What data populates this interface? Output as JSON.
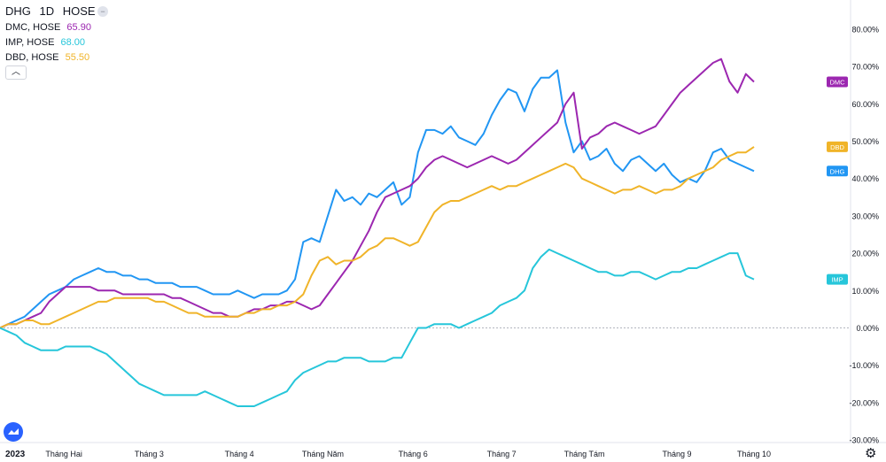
{
  "header": {
    "symbol": "DHG",
    "interval": "1D",
    "exchange": "HOSE",
    "collapse_icon": "minus-icon"
  },
  "legend": [
    {
      "label": "DMC, HOSE",
      "value": "65.90",
      "color": "#9c27b0"
    },
    {
      "label": "IMP, HOSE",
      "value": "68.00",
      "color": "#26c6da"
    },
    {
      "label": "DBD, HOSE",
      "value": "55.50",
      "color": "#f0b429"
    }
  ],
  "footer": {
    "year_label": "2023",
    "logo_icon": "tradingview-logo-icon",
    "settings_icon": "gear-icon",
    "chevron_icon": "chevron-up-icon"
  },
  "chart_data": {
    "type": "line",
    "x_range": [
      0,
      100
    ],
    "ylim": [
      -30,
      85
    ],
    "y_ticks": [
      80,
      70,
      60,
      50,
      40,
      30,
      20,
      10,
      0,
      -10,
      -20,
      -30
    ],
    "y_tick_labels": [
      "80.00%",
      "70.00%",
      "60.00%",
      "50.00%",
      "40.00%",
      "30.00%",
      "20.00%",
      "10.00%",
      "0.00%",
      "-10.00%",
      "-20.00%",
      "-30.00%"
    ],
    "x_ticks": [
      {
        "label": "Tháng Hai",
        "x": 7.8
      },
      {
        "label": "Tháng 3",
        "x": 18.2
      },
      {
        "label": "Tháng 4",
        "x": 29.2
      },
      {
        "label": "Tháng Năm",
        "x": 39.4
      },
      {
        "label": "Tháng 6",
        "x": 50.4
      },
      {
        "label": "Tháng 7",
        "x": 61.2
      },
      {
        "label": "Tháng Tám",
        "x": 71.3
      },
      {
        "label": "Tháng 9",
        "x": 82.6
      },
      {
        "label": "Tháng 10",
        "x": 92.0
      }
    ],
    "baseline": 0,
    "series": [
      {
        "name": "DHG",
        "color": "#2196f3",
        "x": [
          0,
          1,
          2,
          3,
          4,
          5,
          6,
          7,
          8,
          9,
          10,
          11,
          12,
          13,
          14,
          15,
          16,
          17,
          18,
          19,
          20,
          21,
          22,
          23,
          24,
          25,
          26,
          27,
          28,
          29,
          30,
          31,
          32,
          33,
          34,
          35,
          36,
          37,
          38,
          39,
          40,
          41,
          42,
          43,
          44,
          45,
          46,
          47,
          48,
          49,
          50,
          51,
          52,
          53,
          54,
          55,
          56,
          57,
          58,
          59,
          60,
          61,
          62,
          63,
          64,
          65,
          66,
          67,
          68,
          69,
          70,
          71,
          72,
          73,
          74,
          75,
          76,
          77,
          78,
          79,
          80,
          81,
          82,
          83,
          84,
          85,
          86,
          87,
          88,
          89,
          90,
          91,
          92
        ],
        "y": [
          0,
          1,
          2,
          3,
          5,
          7,
          9,
          10,
          11,
          13,
          14,
          15,
          16,
          15,
          15,
          14,
          14,
          13,
          13,
          12,
          12,
          12,
          11,
          11,
          11,
          10,
          9,
          9,
          9,
          10,
          9,
          8,
          9,
          9,
          9,
          10,
          13,
          23,
          24,
          23,
          30,
          37,
          34,
          35,
          33,
          36,
          35,
          37,
          39,
          33,
          35,
          47,
          53,
          53,
          52,
          54,
          51,
          50,
          49,
          52,
          57,
          61,
          64,
          63,
          58,
          64,
          67,
          67,
          69,
          55,
          47,
          50,
          45,
          46,
          48,
          44,
          42,
          45,
          46,
          44,
          42,
          44,
          41,
          39,
          40,
          39,
          42,
          47,
          48,
          45,
          44,
          43,
          42
        ]
      },
      {
        "name": "DMC",
        "color": "#9c27b0",
        "x": [
          0,
          1,
          2,
          3,
          4,
          5,
          6,
          7,
          8,
          9,
          10,
          11,
          12,
          13,
          14,
          15,
          16,
          17,
          18,
          19,
          20,
          21,
          22,
          23,
          24,
          25,
          26,
          27,
          28,
          29,
          30,
          31,
          32,
          33,
          34,
          35,
          36,
          37,
          38,
          39,
          40,
          41,
          42,
          43,
          44,
          45,
          46,
          47,
          48,
          49,
          50,
          51,
          52,
          53,
          54,
          55,
          56,
          57,
          58,
          59,
          60,
          61,
          62,
          63,
          64,
          65,
          66,
          67,
          68,
          69,
          70,
          71,
          72,
          73,
          74,
          75,
          76,
          77,
          78,
          79,
          80,
          81,
          82,
          83,
          84,
          85,
          86,
          87,
          88,
          89,
          90,
          91,
          92
        ],
        "y": [
          0,
          1,
          1,
          2,
          3,
          4,
          7,
          9,
          11,
          11,
          11,
          11,
          10,
          10,
          10,
          9,
          9,
          9,
          9,
          9,
          9,
          8,
          8,
          7,
          6,
          5,
          4,
          4,
          3,
          3,
          4,
          5,
          5,
          6,
          6,
          7,
          7,
          6,
          5,
          6,
          9,
          12,
          15,
          18,
          22,
          26,
          31,
          35,
          36,
          37,
          38,
          40,
          43,
          45,
          46,
          45,
          44,
          43,
          44,
          45,
          46,
          45,
          44,
          45,
          47,
          49,
          51,
          53,
          55,
          60,
          63,
          48,
          51,
          52,
          54,
          55,
          54,
          53,
          52,
          53,
          54,
          57,
          60,
          63,
          65,
          67,
          69,
          71,
          72,
          66,
          63,
          68,
          65.9
        ]
      },
      {
        "name": "DBD",
        "color": "#f0b429",
        "x": [
          0,
          1,
          2,
          3,
          4,
          5,
          6,
          7,
          8,
          9,
          10,
          11,
          12,
          13,
          14,
          15,
          16,
          17,
          18,
          19,
          20,
          21,
          22,
          23,
          24,
          25,
          26,
          27,
          28,
          29,
          30,
          31,
          32,
          33,
          34,
          35,
          36,
          37,
          38,
          39,
          40,
          41,
          42,
          43,
          44,
          45,
          46,
          47,
          48,
          49,
          50,
          51,
          52,
          53,
          54,
          55,
          56,
          57,
          58,
          59,
          60,
          61,
          62,
          63,
          64,
          65,
          66,
          67,
          68,
          69,
          70,
          71,
          72,
          73,
          74,
          75,
          76,
          77,
          78,
          79,
          80,
          81,
          82,
          83,
          84,
          85,
          86,
          87,
          88,
          89,
          90,
          91,
          92
        ],
        "y": [
          0,
          1,
          1,
          2,
          2,
          1,
          1,
          2,
          3,
          4,
          5,
          6,
          7,
          7,
          8,
          8,
          8,
          8,
          8,
          7,
          7,
          6,
          5,
          4,
          4,
          3,
          3,
          3,
          3,
          3,
          4,
          4,
          5,
          5,
          6,
          6,
          7,
          9,
          14,
          18,
          19,
          17,
          18,
          18,
          19,
          21,
          22,
          24,
          24,
          23,
          22,
          23,
          27,
          31,
          33,
          34,
          34,
          35,
          36,
          37,
          38,
          37,
          38,
          38,
          39,
          40,
          41,
          42,
          43,
          44,
          43,
          40,
          39,
          38,
          37,
          36,
          37,
          37,
          38,
          37,
          36,
          37,
          37,
          38,
          40,
          41,
          42,
          43,
          45,
          46,
          47,
          47,
          48.5
        ]
      },
      {
        "name": "IMP",
        "color": "#26c6da",
        "x": [
          0,
          1,
          2,
          3,
          4,
          5,
          6,
          7,
          8,
          9,
          10,
          11,
          12,
          13,
          14,
          15,
          16,
          17,
          18,
          19,
          20,
          21,
          22,
          23,
          24,
          25,
          26,
          27,
          28,
          29,
          30,
          31,
          32,
          33,
          34,
          35,
          36,
          37,
          38,
          39,
          40,
          41,
          42,
          43,
          44,
          45,
          46,
          47,
          48,
          49,
          50,
          51,
          52,
          53,
          54,
          55,
          56,
          57,
          58,
          59,
          60,
          61,
          62,
          63,
          64,
          65,
          66,
          67,
          68,
          69,
          70,
          71,
          72,
          73,
          74,
          75,
          76,
          77,
          78,
          79,
          80,
          81,
          82,
          83,
          84,
          85,
          86,
          87,
          88,
          89,
          90,
          91,
          92
        ],
        "y": [
          0,
          -1,
          -2,
          -4,
          -5,
          -6,
          -6,
          -6,
          -5,
          -5,
          -5,
          -5,
          -6,
          -7,
          -9,
          -11,
          -13,
          -15,
          -16,
          -17,
          -18,
          -18,
          -18,
          -18,
          -18,
          -17,
          -18,
          -19,
          -20,
          -21,
          -21,
          -21,
          -20,
          -19,
          -18,
          -17,
          -14,
          -12,
          -11,
          -10,
          -9,
          -9,
          -8,
          -8,
          -8,
          -9,
          -9,
          -9,
          -8,
          -8,
          -4,
          0,
          0,
          1,
          1,
          1,
          0,
          1,
          2,
          3,
          4,
          6,
          7,
          8,
          10,
          16,
          19,
          21,
          20,
          19,
          18,
          17,
          16,
          15,
          15,
          14,
          14,
          15,
          15,
          14,
          13,
          14,
          15,
          15,
          16,
          16,
          17,
          18,
          19,
          20,
          20,
          14,
          13
        ]
      }
    ],
    "end_labels": [
      {
        "name": "DMC",
        "value": 65.9
      },
      {
        "name": "DBD",
        "value": 48.5
      },
      {
        "name": "DHG",
        "value": 42
      },
      {
        "name": "IMP",
        "value": 13
      }
    ]
  }
}
